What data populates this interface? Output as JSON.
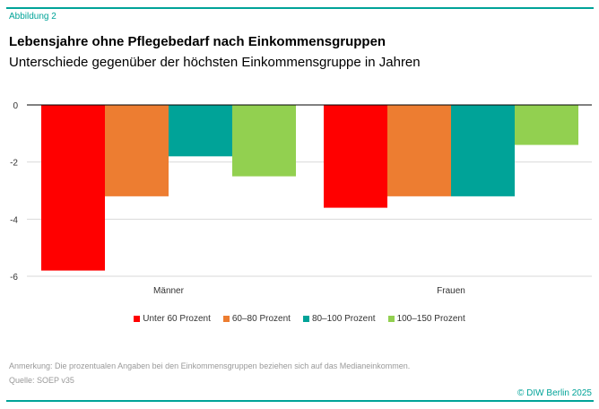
{
  "figure_label": "Abbildung 2",
  "note": "Anmerkung: Die prozentualen Angaben bei den Einkommensgruppen beziehen sich auf das Medianeinkommen.",
  "source": "Quelle: SOEP v35",
  "copyright": "© DIW Berlin 2025",
  "chart_data": {
    "type": "bar",
    "title": "Lebensjahre ohne Pflegebedarf nach Einkommensgruppen",
    "subtitle": "Unterschiede gegenüber der höchsten Einkommensgruppe in Jahren",
    "xlabel": "",
    "ylabel": "",
    "categories": [
      "Männer",
      "Frauen"
    ],
    "ylim": [
      -6,
      0
    ],
    "yticks": [
      0,
      -2,
      -4,
      -6
    ],
    "ytick_labels": [
      "0",
      "-2",
      "-4",
      "-6"
    ],
    "grid": true,
    "legend_position": "bottom",
    "series": [
      {
        "name": "Unter 60 Prozent",
        "color": "#ff0000",
        "values": [
          -5.8,
          -3.6
        ]
      },
      {
        "name": "60–80 Prozent",
        "color": "#ed7d31",
        "values": [
          -3.2,
          -3.2
        ]
      },
      {
        "name": "80–100 Prozent",
        "color": "#00a398",
        "values": [
          -1.8,
          -3.2
        ]
      },
      {
        "name": "100–150 Prozent",
        "color": "#92d050",
        "values": [
          -2.5,
          -1.4
        ]
      }
    ]
  }
}
